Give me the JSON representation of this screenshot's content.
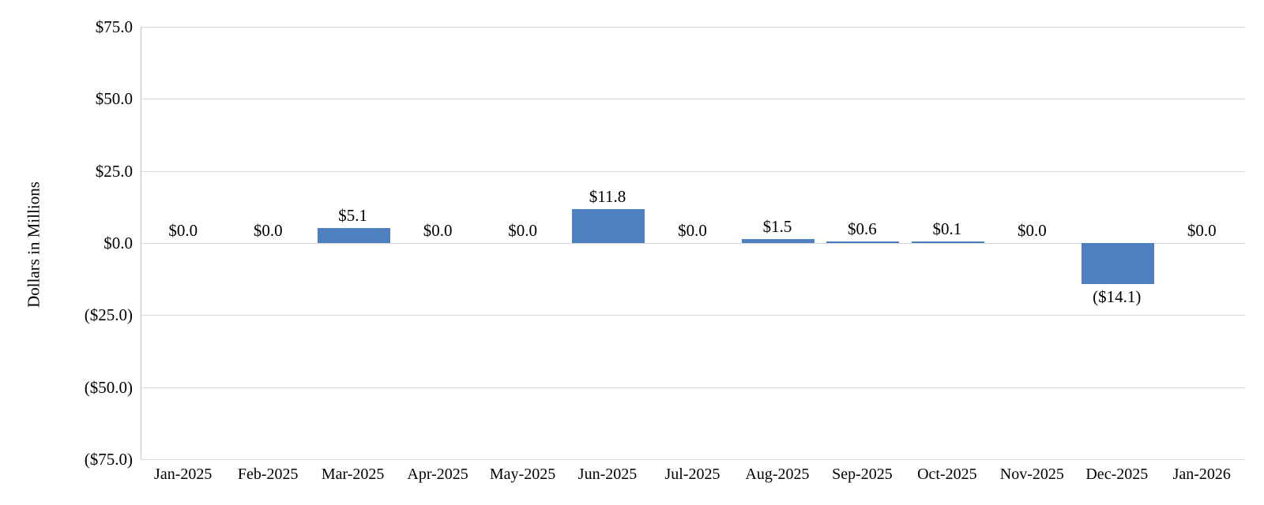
{
  "chart_data": {
    "type": "bar",
    "title": "",
    "xlabel": "",
    "ylabel": "Dollars in Millions",
    "categories": [
      "Jan-2025",
      "Feb-2025",
      "Mar-2025",
      "Apr-2025",
      "May-2025",
      "Jun-2025",
      "Jul-2025",
      "Aug-2025",
      "Sep-2025",
      "Oct-2025",
      "Nov-2025",
      "Dec-2025",
      "Jan-2026"
    ],
    "values": [
      0.0,
      0.0,
      5.1,
      0.0,
      0.0,
      11.8,
      0.0,
      1.5,
      0.6,
      0.1,
      0.0,
      -14.1,
      0.0
    ],
    "data_labels": [
      "$0.0",
      "$0.0",
      "$5.1",
      "$0.0",
      "$0.0",
      "$11.8",
      "$0.0",
      "$1.5",
      "$0.6",
      "$0.1",
      "$0.0",
      "($14.1)",
      "$0.0"
    ],
    "ylim": [
      -75,
      75
    ],
    "ytick_values": [
      75,
      50,
      25,
      0,
      -25,
      -50,
      -75
    ],
    "ytick_labels": [
      "$75.0",
      "$50.0",
      "$25.0",
      "$0.0",
      "($25.0)",
      "($50.0)",
      "($75.0)"
    ],
    "grid": true,
    "legend": false,
    "colors": {
      "bar_fill": "#4e7fbe",
      "gridline": "#d9d9d9",
      "axis_line": "#bfbfbf",
      "text": "#000000",
      "background": "#ffffff"
    }
  }
}
